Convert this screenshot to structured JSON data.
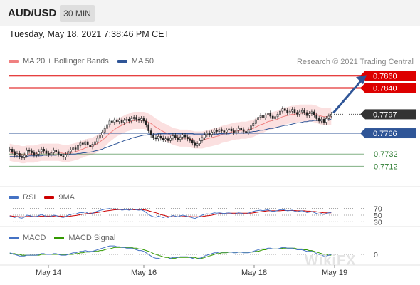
{
  "header": {
    "symbol": "AUD/USD",
    "timeframe": "30 MIN"
  },
  "datetime": "Tuesday, May 18, 2021 7:38:46 PM CET",
  "legend_main": [
    {
      "label": "MA 20 + Bollinger Bands",
      "color": "#f08080"
    },
    {
      "label": "MA 50",
      "color": "#2f5597"
    }
  ],
  "credit": "Research © 2021 Trading Central",
  "legend_rsi": [
    {
      "label": "RSI",
      "color": "#4472c4"
    },
    {
      "label": "9MA",
      "color": "#cc0000"
    }
  ],
  "legend_macd": [
    {
      "label": "MACD",
      "color": "#4472c4"
    },
    {
      "label": "MACD Signal",
      "color": "#339900"
    }
  ],
  "watermark": "WikiFX",
  "colors": {
    "resistance": "#dd0000",
    "support": "#2f5597",
    "target": "#2e7d32",
    "price": "#333333",
    "band": "#f7c6c6",
    "arrow": "#2f5597"
  },
  "chart_data": {
    "type": "candlestick",
    "x_labels": [
      "May 14",
      "May 16",
      "May 18",
      "May 19"
    ],
    "y_range": [
      0.7695,
      0.7872
    ],
    "levels": [
      {
        "value": "0.7860",
        "kind": "resistance"
      },
      {
        "value": "0.7840",
        "kind": "resistance"
      },
      {
        "value": "0.7797",
        "kind": "price"
      },
      {
        "value": "0.7766",
        "kind": "support"
      },
      {
        "value": "0.7732",
        "kind": "target"
      },
      {
        "value": "0.7712",
        "kind": "target"
      }
    ],
    "close_series": [
      0.774,
      0.7736,
      0.773,
      0.7733,
      0.7728,
      0.7726,
      0.773,
      0.7738,
      0.7737,
      0.7734,
      0.773,
      0.7732,
      0.7736,
      0.774,
      0.7737,
      0.7733,
      0.7731,
      0.7734,
      0.7738,
      0.7736,
      0.7732,
      0.7729,
      0.7727,
      0.7731,
      0.7736,
      0.7739,
      0.7742,
      0.774,
      0.7746,
      0.775,
      0.7748,
      0.7752,
      0.7747,
      0.7744,
      0.7748,
      0.7752,
      0.7758,
      0.7763,
      0.7768,
      0.7774,
      0.778,
      0.7786,
      0.7784,
      0.7788,
      0.7785,
      0.7788,
      0.7784,
      0.7787,
      0.7789,
      0.7786,
      0.779,
      0.7792,
      0.7789,
      0.7787,
      0.779,
      0.7786,
      0.778,
      0.777,
      0.7763,
      0.7759,
      0.7757,
      0.7761,
      0.7758,
      0.7755,
      0.7757,
      0.7754,
      0.7758,
      0.7762,
      0.7759,
      0.7756,
      0.776,
      0.7763,
      0.776,
      0.7757,
      0.7754,
      0.775,
      0.7746,
      0.7749,
      0.7754,
      0.7759,
      0.7764,
      0.7766,
      0.7764,
      0.7768,
      0.7771,
      0.7769,
      0.7772,
      0.777,
      0.7768,
      0.7771,
      0.7773,
      0.777,
      0.7767,
      0.7771,
      0.7774,
      0.7772,
      0.7769,
      0.7767,
      0.7772,
      0.7778,
      0.7782,
      0.7788,
      0.7792,
      0.7795,
      0.7791,
      0.7796,
      0.7799,
      0.7794,
      0.779,
      0.7793,
      0.7797,
      0.7802,
      0.7806,
      0.7803,
      0.7799,
      0.7802,
      0.7805,
      0.78,
      0.7797,
      0.7801,
      0.7803,
      0.78,
      0.7795,
      0.7798,
      0.7801,
      0.7796,
      0.779,
      0.7786,
      0.7789,
      0.7784,
      0.779,
      0.7794,
      0.7797
    ],
    "ma20": [
      0.7735,
      0.7734,
      0.7733,
      0.7733,
      0.7732,
      0.7731,
      0.7731,
      0.7732,
      0.7732,
      0.7732,
      0.7732,
      0.7733,
      0.7734,
      0.7735,
      0.7735,
      0.7735,
      0.7735,
      0.7735,
      0.7735,
      0.7735,
      0.7735,
      0.7734,
      0.7733,
      0.7733,
      0.7733,
      0.7734,
      0.7735,
      0.7736,
      0.7737,
      0.7739,
      0.774,
      0.7742,
      0.7743,
      0.7744,
      0.7745,
      0.7747,
      0.7749,
      0.7752,
      0.7755,
      0.7758,
      0.7762,
      0.7766,
      0.7769,
      0.7772,
      0.7775,
      0.7777,
      0.7779,
      0.7781,
      0.7783,
      0.7784,
      0.7786,
      0.7787,
      0.7787,
      0.7787,
      0.7787,
      0.7787,
      0.7786,
      0.7784,
      0.7782,
      0.7779,
      0.7776,
      0.7774,
      0.7771,
      0.7769,
      0.7767,
      0.7765,
      0.7763,
      0.7761,
      0.776,
      0.7759,
      0.7758,
      0.7758,
      0.7758,
      0.7758,
      0.7757,
      0.7756,
      0.7755,
      0.7755,
      0.7755,
      0.7755,
      0.7756,
      0.7757,
      0.7758,
      0.7759,
      0.776,
      0.7761,
      0.7762,
      0.7764,
      0.7765,
      0.7766,
      0.7767,
      0.7768,
      0.7769,
      0.777,
      0.777,
      0.7771,
      0.7771,
      0.7771,
      0.7772,
      0.7773,
      0.7774,
      0.7776,
      0.7778,
      0.778,
      0.7781,
      0.7783,
      0.7785,
      0.7786,
      0.7787,
      0.7788,
      0.7789,
      0.7791,
      0.7793,
      0.7794,
      0.7795,
      0.7796,
      0.7797,
      0.7797,
      0.7798,
      0.7799,
      0.7799,
      0.7799,
      0.7799,
      0.7799,
      0.7799,
      0.7798,
      0.7797,
      0.7795,
      0.7794,
      0.7793,
      0.7793,
      0.7793,
      0.7793
    ],
    "ma50": [
      0.7728,
      0.7728,
      0.7728,
      0.7728,
      0.7728,
      0.7728,
      0.7728,
      0.7728,
      0.7729,
      0.7729,
      0.7729,
      0.7729,
      0.7729,
      0.7729,
      0.773,
      0.773,
      0.773,
      0.773,
      0.773,
      0.773,
      0.7731,
      0.7731,
      0.7731,
      0.7731,
      0.7731,
      0.7732,
      0.7732,
      0.7732,
      0.7733,
      0.7733,
      0.7734,
      0.7734,
      0.7735,
      0.7735,
      0.7736,
      0.7737,
      0.7738,
      0.7739,
      0.774,
      0.7742,
      0.7743,
      0.7745,
      0.7746,
      0.7748,
      0.7749,
      0.7751,
      0.7752,
      0.7754,
      0.7755,
      0.7756,
      0.7758,
      0.7759,
      0.776,
      0.7761,
      0.7762,
      0.7763,
      0.7763,
      0.7764,
      0.7764,
      0.7764,
      0.7764,
      0.7765,
      0.7765,
      0.7765,
      0.7765,
      0.7765,
      0.7765,
      0.7765,
      0.7765,
      0.7765,
      0.7765,
      0.7765,
      0.7765,
      0.7765,
      0.7765,
      0.7765,
      0.7764,
      0.7764,
      0.7764,
      0.7764,
      0.7764,
      0.7764,
      0.7764,
      0.7764,
      0.7764,
      0.7764,
      0.7765,
      0.7765,
      0.7765,
      0.7765,
      0.7765,
      0.7766,
      0.7766,
      0.7766,
      0.7766,
      0.7767,
      0.7767,
      0.7767,
      0.7768,
      0.7768,
      0.7769,
      0.7769,
      0.777,
      0.7771,
      0.7771,
      0.7772,
      0.7773,
      0.7774,
      0.7774,
      0.7775,
      0.7776,
      0.7777,
      0.7778,
      0.7779,
      0.7779,
      0.778,
      0.7781,
      0.7782,
      0.7783,
      0.7783,
      0.7784,
      0.7785,
      0.7785,
      0.7786,
      0.7786,
      0.7787,
      0.7787,
      0.7787,
      0.7787,
      0.7788,
      0.7788,
      0.7788,
      0.7789
    ],
    "band_width": 0.0014,
    "rsi": {
      "levels": [
        "70",
        "50",
        "30"
      ],
      "range": [
        20,
        80
      ],
      "rsi_values": [
        47,
        45,
        43,
        46,
        42,
        41,
        44,
        50,
        49,
        47,
        45,
        46,
        49,
        52,
        49,
        46,
        45,
        47,
        50,
        49,
        46,
        44,
        43,
        46,
        50,
        52,
        54,
        53,
        56,
        58,
        57,
        60,
        56,
        53,
        56,
        59,
        62,
        64,
        66,
        68,
        69,
        70,
        68,
        69,
        67,
        68,
        65,
        66,
        67,
        65,
        67,
        68,
        66,
        65,
        66,
        63,
        58,
        52,
        48,
        45,
        44,
        47,
        45,
        43,
        45,
        43,
        46,
        49,
        47,
        45,
        48,
        50,
        48,
        46,
        44,
        42,
        40,
        43,
        47,
        50,
        53,
        54,
        53,
        55,
        57,
        56,
        57,
        56,
        55,
        56,
        57,
        55,
        53,
        55,
        57,
        56,
        54,
        53,
        56,
        59,
        61,
        63,
        64,
        65,
        63,
        65,
        66,
        63,
        61,
        62,
        64,
        66,
        67,
        65,
        63,
        64,
        65,
        62,
        60,
        62,
        63,
        61,
        58,
        59,
        61,
        58,
        55,
        53,
        55,
        52,
        55,
        57,
        58
      ],
      "ma_values": [
        48,
        47,
        46,
        46,
        45,
        45,
        45,
        46,
        46,
        46,
        46,
        46,
        46,
        47,
        47,
        47,
        47,
        47,
        47,
        48,
        47,
        47,
        46,
        46,
        46,
        47,
        48,
        49,
        50,
        52,
        53,
        54,
        55,
        56,
        56,
        57,
        58,
        59,
        60,
        62,
        63,
        64,
        65,
        66,
        66,
        67,
        67,
        67,
        67,
        67,
        67,
        66,
        66,
        66,
        66,
        66,
        65,
        63,
        61,
        59,
        57,
        55,
        52,
        50,
        48,
        46,
        45,
        45,
        45,
        45,
        45,
        46,
        46,
        46,
        46,
        45,
        45,
        45,
        45,
        46,
        47,
        48,
        49,
        50,
        52,
        53,
        54,
        55,
        55,
        56,
        56,
        56,
        56,
        56,
        56,
        56,
        56,
        56,
        56,
        56,
        57,
        58,
        59,
        60,
        61,
        62,
        63,
        63,
        63,
        63,
        63,
        63,
        64,
        64,
        64,
        64,
        64,
        64,
        63,
        63,
        63,
        63,
        62,
        62,
        61,
        61,
        60,
        59,
        58,
        57,
        57,
        57,
        57
      ]
    },
    "macd": {
      "zero_label": "0",
      "range": [
        -0.0012,
        0.0012
      ],
      "macd_values": [
        0.0002,
        0.0001,
        0.0,
        -0.0001,
        -0.0002,
        -0.0002,
        -0.0002,
        -0.0001,
        -0.0001,
        -0.0001,
        -0.0001,
        -0.0001,
        0.0,
        0.0001,
        0.0001,
        0.0,
        0.0,
        0.0,
        0.0001,
        0.0001,
        0.0,
        -0.0001,
        -0.0001,
        -0.0001,
        0.0,
        0.0001,
        0.0002,
        0.0002,
        0.0003,
        0.0004,
        0.0004,
        0.0005,
        0.0004,
        0.0004,
        0.0004,
        0.0005,
        0.0006,
        0.0007,
        0.0008,
        0.0009,
        0.001,
        0.0011,
        0.0011,
        0.0011,
        0.001,
        0.001,
        0.0009,
        0.0009,
        0.0008,
        0.0008,
        0.0008,
        0.0007,
        0.0006,
        0.0005,
        0.0005,
        0.0004,
        0.0002,
        0.0,
        -0.0002,
        -0.0004,
        -0.0005,
        -0.0005,
        -0.0006,
        -0.0006,
        -0.0006,
        -0.0006,
        -0.0005,
        -0.0004,
        -0.0004,
        -0.0004,
        -0.0003,
        -0.0003,
        -0.0003,
        -0.0003,
        -0.0004,
        -0.0005,
        -0.0006,
        -0.0006,
        -0.0005,
        -0.0004,
        -0.0002,
        -0.0001,
        0.0,
        0.0001,
        0.0002,
        0.0002,
        0.0003,
        0.0003,
        0.0003,
        0.0003,
        0.0003,
        0.0003,
        0.0002,
        0.0002,
        0.0003,
        0.0003,
        0.0002,
        0.0002,
        0.0002,
        0.0003,
        0.0004,
        0.0005,
        0.0006,
        0.0007,
        0.0007,
        0.0007,
        0.0008,
        0.0008,
        0.0007,
        0.0007,
        0.0007,
        0.0008,
        0.0009,
        0.0009,
        0.0008,
        0.0008,
        0.0008,
        0.0007,
        0.0006,
        0.0006,
        0.0006,
        0.0005,
        0.0004,
        0.0004,
        0.0004,
        0.0003,
        0.0001,
        0.0,
        -0.0001,
        -0.0002,
        -0.0002,
        -0.0001,
        0.0
      ],
      "signal_values": [
        0.0001,
        0.0001,
        0.0001,
        0.0,
        0.0,
        -0.0001,
        -0.0001,
        -0.0001,
        -0.0001,
        -0.0001,
        -0.0001,
        -0.0001,
        -0.0001,
        0.0,
        0.0,
        0.0,
        0.0,
        0.0,
        0.0,
        0.0,
        0.0,
        0.0,
        0.0,
        0.0,
        0.0,
        0.0,
        0.0,
        0.0001,
        0.0001,
        0.0002,
        0.0002,
        0.0003,
        0.0003,
        0.0003,
        0.0004,
        0.0004,
        0.0004,
        0.0005,
        0.0005,
        0.0006,
        0.0007,
        0.0007,
        0.0008,
        0.0009,
        0.0009,
        0.0009,
        0.0009,
        0.0009,
        0.0009,
        0.0009,
        0.0009,
        0.0008,
        0.0008,
        0.0007,
        0.0007,
        0.0006,
        0.0005,
        0.0004,
        0.0003,
        0.0001,
        0.0,
        -0.0001,
        -0.0002,
        -0.0003,
        -0.0004,
        -0.0004,
        -0.0005,
        -0.0005,
        -0.0005,
        -0.0004,
        -0.0004,
        -0.0004,
        -0.0004,
        -0.0004,
        -0.0004,
        -0.0004,
        -0.0004,
        -0.0005,
        -0.0005,
        -0.0005,
        -0.0004,
        -0.0003,
        -0.0002,
        -0.0001,
        0.0,
        0.0001,
        0.0001,
        0.0002,
        0.0002,
        0.0002,
        0.0003,
        0.0003,
        0.0003,
        0.0003,
        0.0003,
        0.0003,
        0.0003,
        0.0003,
        0.0003,
        0.0003,
        0.0003,
        0.0004,
        0.0004,
        0.0005,
        0.0006,
        0.0006,
        0.0007,
        0.0007,
        0.0007,
        0.0007,
        0.0007,
        0.0007,
        0.0008,
        0.0008,
        0.0008,
        0.0008,
        0.0008,
        0.0008,
        0.0007,
        0.0007,
        0.0007,
        0.0006,
        0.0006,
        0.0005,
        0.0005,
        0.0004,
        0.0003,
        0.0002,
        0.0001,
        0.0,
        0.0,
        -0.0001,
        -0.0001
      ]
    }
  }
}
